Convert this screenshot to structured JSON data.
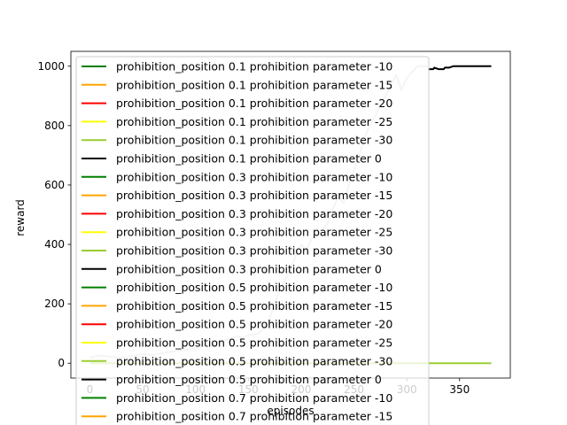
{
  "chart_data": {
    "type": "line",
    "xlabel": "episodes",
    "ylabel": "reward",
    "xlim": [
      -18,
      398
    ],
    "ylim": [
      -50,
      1050
    ],
    "xticks": [
      0,
      50,
      100,
      150,
      200,
      250,
      300,
      350
    ],
    "yticks": [
      0,
      200,
      400,
      600,
      800,
      1000
    ],
    "grid": false,
    "legend_position": "upper left",
    "legend": [
      {
        "label": "prohibition_position 0.1 prohibition parameter -10",
        "color": "#008000"
      },
      {
        "label": "prohibition_position 0.1 prohibition parameter -15",
        "color": "#ffa500"
      },
      {
        "label": "prohibition_position 0.1 prohibition parameter -20",
        "color": "#ff0000"
      },
      {
        "label": "prohibition_position 0.1 prohibition parameter -25",
        "color": "#ffff00"
      },
      {
        "label": "prohibition_position 0.1 prohibition parameter -30",
        "color": "#9acd32"
      },
      {
        "label": "prohibition_position 0.1 prohibition parameter 0",
        "color": "#000000"
      },
      {
        "label": "prohibition_position 0.3 prohibition parameter -10",
        "color": "#008000"
      },
      {
        "label": "prohibition_position 0.3 prohibition parameter -15",
        "color": "#ffa500"
      },
      {
        "label": "prohibition_position 0.3 prohibition parameter -20",
        "color": "#ff0000"
      },
      {
        "label": "prohibition_position 0.3 prohibition parameter -25",
        "color": "#ffff00"
      },
      {
        "label": "prohibition_position 0.3 prohibition parameter -30",
        "color": "#9acd32"
      },
      {
        "label": "prohibition_position 0.3 prohibition parameter 0",
        "color": "#000000"
      },
      {
        "label": "prohibition_position 0.5 prohibition parameter -10",
        "color": "#008000"
      },
      {
        "label": "prohibition_position 0.5 prohibition parameter -15",
        "color": "#ffa500"
      },
      {
        "label": "prohibition_position 0.5 prohibition parameter -20",
        "color": "#ff0000"
      },
      {
        "label": "prohibition_position 0.5 prohibition parameter -25",
        "color": "#ffff00"
      },
      {
        "label": "prohibition_position 0.5 prohibition parameter -30",
        "color": "#9acd32"
      },
      {
        "label": "prohibition_position 0.5 prohibition parameter 0",
        "color": "#000000"
      },
      {
        "label": "prohibition_position 0.7 prohibition parameter -10",
        "color": "#008000"
      },
      {
        "label": "prohibition_position 0.7 prohibition parameter -15",
        "color": "#ffa500"
      }
    ],
    "series": [
      {
        "color": "#9acd32",
        "x": [
          0,
          380
        ],
        "y": [
          0,
          0
        ]
      },
      {
        "color": "#000000",
        "x": [
          320,
          325,
          326,
          330,
          335,
          336,
          340,
          344,
          345,
          350,
          360,
          370,
          380
        ],
        "y": [
          990,
          990,
          995,
          990,
          990,
          995,
          995,
          1000,
          1000,
          1000,
          1000,
          1000,
          1000
        ]
      },
      {
        "color": "#c8c8c8",
        "x": [
          0,
          10,
          20,
          30,
          40,
          50,
          60,
          70,
          80,
          90,
          100,
          110,
          115,
          120,
          130,
          140,
          145,
          150,
          160,
          165,
          170,
          175,
          180,
          185,
          190,
          195,
          200,
          205,
          210,
          215,
          220,
          225,
          230,
          235,
          240,
          245,
          250,
          255,
          260,
          265,
          270,
          275,
          280,
          285,
          290,
          295,
          300,
          305,
          310,
          315,
          318,
          320
        ],
        "y": [
          20,
          25,
          22,
          18,
          25,
          30,
          28,
          35,
          40,
          45,
          50,
          60,
          55,
          70,
          80,
          90,
          85,
          95,
          100,
          120,
          150,
          200,
          250,
          280,
          320,
          360,
          400,
          380,
          420,
          440,
          450,
          470,
          520,
          560,
          540,
          600,
          650,
          700,
          760,
          800,
          830,
          870,
          900,
          940,
          970,
          920,
          960,
          980,
          1000,
          1000,
          1000,
          1000
        ]
      }
    ]
  }
}
